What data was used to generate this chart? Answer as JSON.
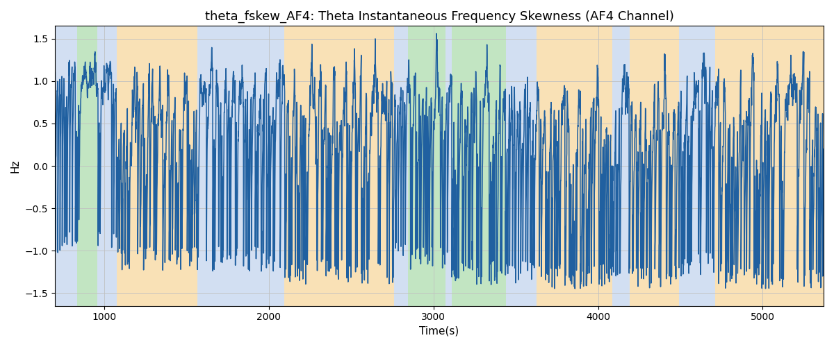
{
  "title": "theta_fskew_AF4: Theta Instantaneous Frequency Skewness (AF4 Channel)",
  "xlabel": "Time(s)",
  "ylabel": "Hz",
  "ylim": [
    -1.65,
    1.65
  ],
  "xlim": [
    700,
    5370
  ],
  "yticks": [
    -1.5,
    -1.0,
    -0.5,
    0.0,
    0.5,
    1.0,
    1.5
  ],
  "xticks": [
    1000,
    2000,
    3000,
    4000,
    5000
  ],
  "bg_bands": [
    {
      "xmin": 700,
      "xmax": 835,
      "color": "#aec6e8",
      "alpha": 0.55
    },
    {
      "xmin": 835,
      "xmax": 960,
      "color": "#90d090",
      "alpha": 0.55
    },
    {
      "xmin": 960,
      "xmax": 1075,
      "color": "#aec6e8",
      "alpha": 0.55
    },
    {
      "xmin": 1075,
      "xmax": 1565,
      "color": "#f5c97a",
      "alpha": 0.55
    },
    {
      "xmin": 1565,
      "xmax": 2095,
      "color": "#aec6e8",
      "alpha": 0.55
    },
    {
      "xmin": 2095,
      "xmax": 2760,
      "color": "#f5c97a",
      "alpha": 0.55
    },
    {
      "xmin": 2760,
      "xmax": 2845,
      "color": "#aec6e8",
      "alpha": 0.55
    },
    {
      "xmin": 2845,
      "xmax": 3075,
      "color": "#90d090",
      "alpha": 0.55
    },
    {
      "xmin": 3075,
      "xmax": 3110,
      "color": "#aec6e8",
      "alpha": 0.55
    },
    {
      "xmin": 3110,
      "xmax": 3440,
      "color": "#90d090",
      "alpha": 0.55
    },
    {
      "xmin": 3440,
      "xmax": 3625,
      "color": "#aec6e8",
      "alpha": 0.55
    },
    {
      "xmin": 3625,
      "xmax": 4085,
      "color": "#f5c97a",
      "alpha": 0.55
    },
    {
      "xmin": 4085,
      "xmax": 4190,
      "color": "#aec6e8",
      "alpha": 0.55
    },
    {
      "xmin": 4190,
      "xmax": 4490,
      "color": "#f5c97a",
      "alpha": 0.55
    },
    {
      "xmin": 4490,
      "xmax": 4710,
      "color": "#aec6e8",
      "alpha": 0.55
    },
    {
      "xmin": 4710,
      "xmax": 5370,
      "color": "#f5c97a",
      "alpha": 0.55
    }
  ],
  "line_color": "#2060a0",
  "line_width": 1.1,
  "grid_color": "#c0c0c0",
  "title_fontsize": 13,
  "label_fontsize": 11,
  "tick_fontsize": 10,
  "n_points": 4600,
  "seed": 42
}
